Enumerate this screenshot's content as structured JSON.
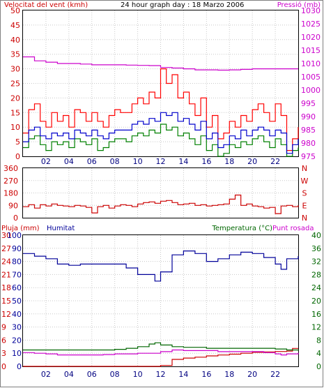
{
  "chart_data": [
    {
      "type": "line",
      "title": "24 hour graph day : 18 Marzo 2006",
      "left_axis_label": "Velocitat del vent (kmh)",
      "right_axis_label": "Pressió (mb)",
      "xticks": [
        "02",
        "04",
        "06",
        "08",
        "10",
        "12",
        "14",
        "16",
        "18",
        "20",
        "22"
      ],
      "xlim": [
        0,
        24
      ],
      "ylim_left": [
        0,
        50
      ],
      "ylim_right": [
        975,
        1030
      ],
      "yticks_left": [
        "0",
        "5",
        "10",
        "15",
        "20",
        "25",
        "30",
        "35",
        "40",
        "45",
        "50"
      ],
      "yticks_right": [
        "975",
        "980",
        "985",
        "990",
        "995",
        "1000",
        "1005",
        "1010",
        "1015",
        "1020",
        "1025",
        "1030"
      ],
      "grid": true,
      "colors": {
        "gust": "#ff0000",
        "average": "#0000cc",
        "minimum": "#008000",
        "pressure": "#cc00cc"
      },
      "series": [
        {
          "role": "gust",
          "axis": "left",
          "x": [
            0,
            0.5,
            1,
            1.5,
            2,
            2.5,
            3,
            3.5,
            4,
            4.5,
            5,
            5.5,
            6,
            6.5,
            7,
            7.5,
            8,
            8.5,
            9,
            9.5,
            10,
            10.5,
            11,
            11.5,
            12,
            12.5,
            13,
            13.5,
            14,
            14.5,
            15,
            15.5,
            16,
            16.5,
            17,
            17.5,
            18,
            18.5,
            19,
            19.5,
            20,
            20.5,
            21,
            21.5,
            22,
            22.5,
            23,
            23.5,
            24
          ],
          "values": [
            8,
            16,
            18,
            12,
            10,
            15,
            12,
            14,
            10,
            16,
            15,
            12,
            15,
            12,
            10,
            14,
            16,
            15,
            15,
            18,
            20,
            18,
            22,
            20,
            30,
            25,
            28,
            20,
            22,
            18,
            14,
            20,
            10,
            14,
            6,
            8,
            12,
            10,
            14,
            12,
            16,
            18,
            15,
            12,
            18,
            14,
            2,
            6,
            10
          ]
        },
        {
          "role": "average",
          "axis": "left",
          "x": [
            0,
            0.5,
            1,
            1.5,
            2,
            2.5,
            3,
            3.5,
            4,
            4.5,
            5,
            5.5,
            6,
            6.5,
            7,
            7.5,
            8,
            8.5,
            9,
            9.5,
            10,
            10.5,
            11,
            11.5,
            12,
            12.5,
            13,
            13.5,
            14,
            14.5,
            15,
            15.5,
            16,
            16.5,
            17,
            17.5,
            18,
            18.5,
            19,
            19.5,
            20,
            20.5,
            21,
            21.5,
            22,
            22.5,
            23,
            23.5,
            24
          ],
          "values": [
            5,
            9,
            10,
            7,
            6,
            8,
            7,
            8,
            6,
            9,
            8,
            7,
            9,
            7,
            6,
            8,
            9,
            9,
            9,
            11,
            12,
            11,
            13,
            12,
            15,
            14,
            15,
            12,
            13,
            11,
            9,
            12,
            6,
            8,
            3,
            4,
            7,
            6,
            9,
            7,
            9,
            10,
            9,
            7,
            9,
            8,
            1,
            4,
            6
          ]
        },
        {
          "role": "minimum",
          "axis": "left",
          "x": [
            0,
            0.5,
            1,
            1.5,
            2,
            2.5,
            3,
            3.5,
            4,
            4.5,
            5,
            5.5,
            6,
            6.5,
            7,
            7.5,
            8,
            8.5,
            9,
            9.5,
            10,
            10.5,
            11,
            11.5,
            12,
            12.5,
            13,
            13.5,
            14,
            14.5,
            15,
            15.5,
            16,
            16.5,
            17,
            17.5,
            18,
            18.5,
            19,
            19.5,
            20,
            20.5,
            21,
            21.5,
            22,
            22.5,
            23,
            23.5,
            24
          ],
          "values": [
            3,
            6,
            7,
            4,
            2,
            5,
            4,
            5,
            3,
            6,
            5,
            4,
            6,
            2,
            3,
            5,
            6,
            6,
            5,
            7,
            8,
            7,
            9,
            8,
            11,
            9,
            10,
            7,
            8,
            6,
            4,
            7,
            2,
            4,
            0,
            1,
            4,
            3,
            5,
            4,
            6,
            7,
            5,
            3,
            6,
            4,
            0,
            2,
            3
          ]
        },
        {
          "role": "pressure",
          "axis": "right",
          "x": [
            0,
            1,
            2,
            3,
            4,
            5,
            6,
            7,
            8,
            9,
            10,
            11,
            12,
            13,
            14,
            15,
            16,
            17,
            18,
            19,
            20,
            21,
            22,
            23,
            24
          ],
          "values": [
            1012.5,
            1011,
            1010.5,
            1010,
            1010,
            1009.8,
            1009.5,
            1009.5,
            1009.5,
            1009.4,
            1009.3,
            1009.2,
            1008.5,
            1008.3,
            1008,
            1007.6,
            1007.6,
            1007.5,
            1007.6,
            1007.8,
            1008,
            1008,
            1008,
            1008,
            1008
          ]
        }
      ]
    },
    {
      "type": "line",
      "ylim_left": [
        0,
        360
      ],
      "yticks_left": [
        "0",
        "90",
        "180",
        "270",
        "360"
      ],
      "yticks_right": [
        "N",
        "E",
        "S",
        "W",
        "N"
      ],
      "xlim": [
        0,
        24
      ],
      "grid": true,
      "colors": {
        "direction": "#cc0000"
      },
      "series": [
        {
          "role": "direction",
          "axis": "left",
          "x": [
            0,
            0.5,
            1,
            1.5,
            2,
            2.5,
            3,
            3.5,
            4,
            4.5,
            5,
            5.5,
            6,
            6.5,
            7,
            7.5,
            8,
            8.5,
            9,
            9.5,
            10,
            10.5,
            11,
            11.5,
            12,
            12.5,
            13,
            13.5,
            14,
            14.5,
            15,
            15.5,
            16,
            16.5,
            17,
            17.5,
            18,
            18.5,
            19,
            19.5,
            20,
            20.5,
            21,
            21.5,
            22,
            22.5,
            23,
            23.5,
            24
          ],
          "values": [
            80,
            95,
            70,
            95,
            85,
            100,
            90,
            85,
            80,
            90,
            85,
            75,
            35,
            80,
            90,
            70,
            85,
            95,
            90,
            80,
            100,
            110,
            115,
            105,
            120,
            125,
            110,
            95,
            100,
            105,
            90,
            95,
            85,
            90,
            95,
            100,
            135,
            165,
            90,
            100,
            85,
            80,
            70,
            75,
            30,
            85,
            90,
            80,
            90
          ]
        }
      ]
    },
    {
      "type": "line",
      "left_axis_label_1": "Pluja (mm)",
      "left_axis_label_2": "Humitat",
      "right_axis_label_1": "Temperatura (°C)",
      "right_axis_label_2": "Punt rosada",
      "yticks_left_rain": [
        "0",
        "3",
        "6",
        "9",
        "12",
        "15",
        "18",
        "21",
        "24",
        "27",
        "30"
      ],
      "yticks_left_humidity": [
        "0",
        "10",
        "20",
        "30",
        "40",
        "50",
        "60",
        "70",
        "80",
        "90",
        "100"
      ],
      "yticks_right": [
        "0",
        "4",
        "8",
        "12",
        "16",
        "20",
        "24",
        "28",
        "32",
        "36",
        "40"
      ],
      "xticks": [
        "02",
        "04",
        "06",
        "08",
        "10",
        "12",
        "14",
        "16",
        "18",
        "20",
        "22"
      ],
      "xlim": [
        0,
        24
      ],
      "ylim_left_rain": [
        0,
        30
      ],
      "ylim_left_humidity": [
        0,
        100
      ],
      "ylim_right": [
        0,
        40
      ],
      "grid": true,
      "colors": {
        "humidity": "#000099",
        "temperature": "#006600",
        "dewpoint": "#cc00cc",
        "rain": "#cc0000"
      },
      "series": [
        {
          "role": "humidity",
          "axis": "left_humidity",
          "x": [
            0,
            1,
            2,
            3,
            4,
            5,
            6,
            7,
            8,
            9,
            10,
            11,
            11.5,
            12,
            13,
            14,
            15,
            16,
            17,
            18,
            19,
            20,
            21,
            22,
            22.5,
            23,
            24
          ],
          "values": [
            86,
            84,
            82,
            78,
            77,
            78,
            78,
            78,
            78,
            75,
            70,
            70,
            65,
            72,
            85,
            88,
            86,
            80,
            82,
            85,
            87,
            86,
            83,
            78,
            74,
            82,
            84
          ]
        },
        {
          "role": "temperature",
          "axis": "right",
          "x": [
            0,
            1,
            2,
            3,
            4,
            5,
            6,
            7,
            8,
            9,
            10,
            11,
            11.5,
            12,
            13,
            14,
            15,
            16,
            17,
            18,
            19,
            20,
            21,
            22,
            23,
            24
          ],
          "values": [
            5,
            5,
            5,
            5,
            5,
            5,
            5,
            5,
            5.2,
            5.5,
            6,
            6.8,
            7.2,
            6.5,
            6,
            5.8,
            5.8,
            5.5,
            5.5,
            5.5,
            5.5,
            5.5,
            5.5,
            5.3,
            5,
            4.8
          ]
        },
        {
          "role": "dewpoint",
          "axis": "right",
          "x": [
            0,
            1,
            2,
            3,
            4,
            5,
            6,
            7,
            8,
            9,
            10,
            11,
            12,
            13,
            14,
            15,
            16,
            17,
            18,
            19,
            20,
            21,
            22,
            22.5,
            23,
            24
          ],
          "values": [
            4.2,
            4,
            3.8,
            3.5,
            3.5,
            3.5,
            3.5,
            3.6,
            3.8,
            3.8,
            4,
            4,
            4.5,
            5,
            4.8,
            4.8,
            4.8,
            4.5,
            4.5,
            4.5,
            4.5,
            4.2,
            3.8,
            3.5,
            3.8,
            4.1
          ]
        },
        {
          "role": "rain",
          "axis": "left_rain",
          "x": [
            0,
            11,
            12,
            13,
            14,
            15,
            16,
            17,
            18,
            19,
            20,
            21,
            22,
            23,
            23.5,
            24
          ],
          "values": [
            0,
            0,
            0.2,
            1.6,
            1.9,
            2.1,
            2.4,
            2.6,
            2.8,
            3,
            3.2,
            3.3,
            3.4,
            3.5,
            4.1,
            4.1
          ]
        }
      ]
    }
  ]
}
